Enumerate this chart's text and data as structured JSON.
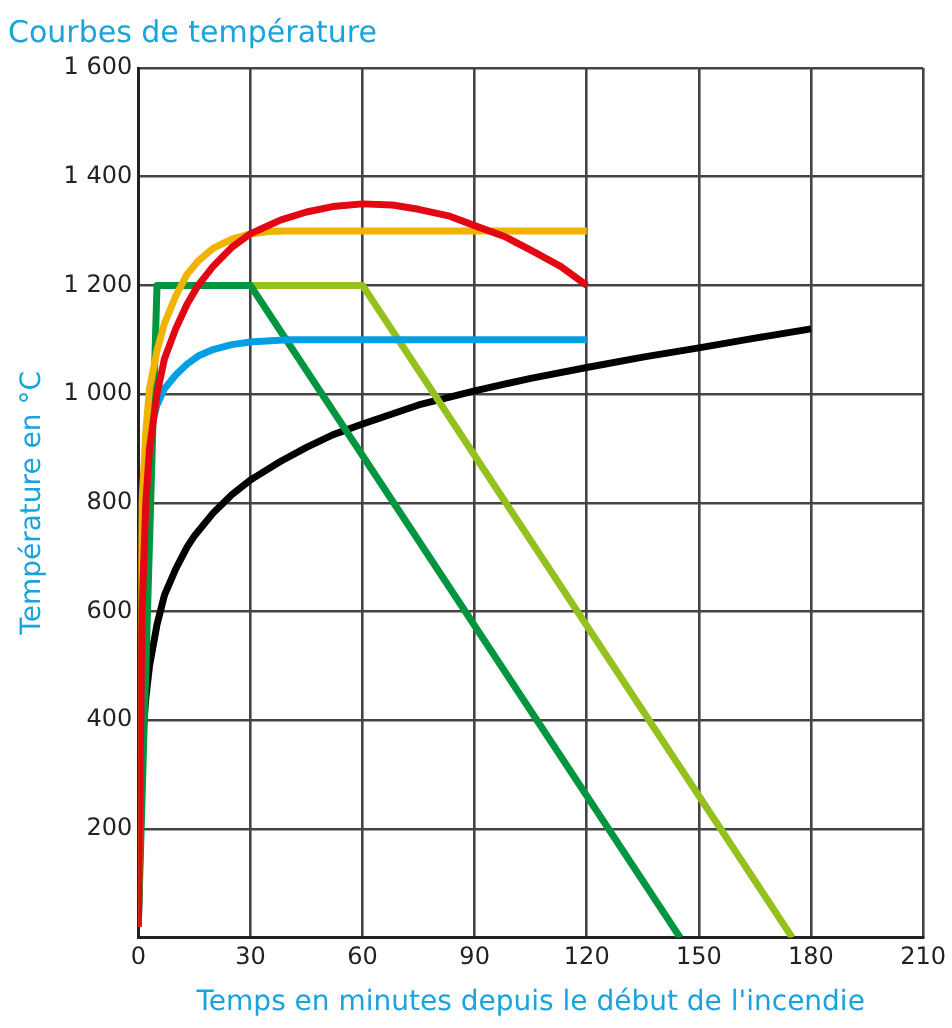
{
  "chart_data": {
    "type": "line",
    "title": "Courbes de température",
    "xlabel": "Temps en minutes depuis le début de l'incendie",
    "ylabel": "Température en °C",
    "xlim": [
      0,
      210
    ],
    "xticks": [
      0,
      30,
      60,
      90,
      120,
      150,
      180,
      210
    ],
    "ylim": [
      0,
      1600
    ],
    "yticks": [
      {
        "value": 0,
        "label": null
      },
      200,
      400,
      600,
      800,
      {
        "value": 1000,
        "label": "1 000"
      },
      {
        "value": 1200,
        "label": "1 200"
      },
      {
        "value": 1400,
        "label": "1 400"
      },
      {
        "value": 1600,
        "label": "1 600"
      }
    ],
    "grid": true,
    "series": [
      {
        "color": "#000000",
        "x": [
          0,
          1,
          2,
          3,
          5,
          7,
          10,
          13,
          15,
          20,
          25,
          30,
          38,
          45,
          52,
          60,
          75,
          90,
          105,
          120,
          135,
          150,
          165,
          180
        ],
        "values": [
          20,
          350,
          440,
          500,
          576,
          630,
          678,
          718,
          739,
          781,
          815,
          842,
          876,
          902,
          925,
          945,
          980,
          1006,
          1029,
          1049,
          1068,
          1085,
          1103,
          1120
        ]
      },
      {
        "color": "#95c11f",
        "x": [
          5,
          30,
          60,
          175
        ],
        "values": [
          1200,
          1200,
          1200,
          0
        ]
      },
      {
        "color": "#00953f",
        "x": [
          0,
          5,
          30,
          145
        ],
        "values": [
          20,
          1200,
          1200,
          0
        ]
      },
      {
        "color": "#00a0e3",
        "x": [
          2,
          5,
          7,
          10,
          13,
          16,
          20,
          25,
          30,
          40,
          60,
          120
        ],
        "values": [
          900,
          980,
          1010,
          1035,
          1055,
          1070,
          1082,
          1091,
          1096,
          1100,
          1100,
          1100
        ]
      },
      {
        "color": "#f0b400",
        "x": [
          0,
          1,
          2,
          3,
          5,
          7,
          10,
          13,
          16,
          20,
          25,
          30,
          35,
          40,
          120
        ],
        "values": [
          20,
          800,
          930,
          1010,
          1080,
          1130,
          1180,
          1220,
          1245,
          1268,
          1285,
          1295,
          1299,
          1300,
          1300
        ]
      },
      {
        "color": "#e30613",
        "x": [
          0,
          1,
          2,
          3,
          5,
          7,
          10,
          13,
          16,
          20,
          25,
          30,
          38,
          45,
          52,
          60,
          68,
          75,
          83,
          90,
          98,
          105,
          113,
          120
        ],
        "values": [
          20,
          600,
          800,
          900,
          1000,
          1065,
          1120,
          1165,
          1200,
          1235,
          1270,
          1295,
          1320,
          1335,
          1345,
          1350,
          1348,
          1340,
          1328,
          1310,
          1290,
          1265,
          1235,
          1200
        ]
      }
    ]
  }
}
